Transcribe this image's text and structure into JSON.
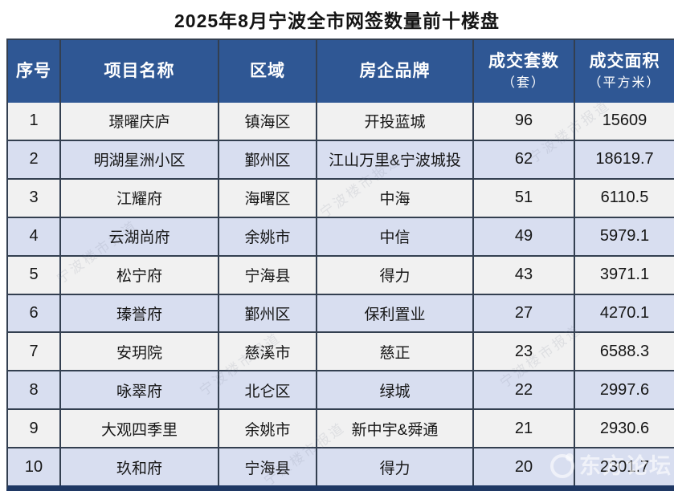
{
  "title": "2025年8月宁波全市网签数量前十楼盘",
  "colors": {
    "header_bg": "#2F5794",
    "row_odd": "#F1F1F1",
    "row_even": "#D8DEF0",
    "border": "#333F50",
    "bottom_bar": "#1F3864"
  },
  "watermark": {
    "diagonal_text": "宁波楼市报道",
    "brand_text": "东方论坛"
  },
  "chart_data": {
    "type": "table",
    "title": "2025年8月宁波全市网签数量前十楼盘",
    "columns": [
      {
        "label": "序号",
        "sub": ""
      },
      {
        "label": "项目名称",
        "sub": ""
      },
      {
        "label": "区域",
        "sub": ""
      },
      {
        "label": "房企品牌",
        "sub": ""
      },
      {
        "label": "成交套数",
        "sub": "（套）"
      },
      {
        "label": "成交面积",
        "sub": "（平方米）"
      }
    ],
    "rows": [
      [
        "1",
        "璟曜庆庐",
        "镇海区",
        "开投蓝城",
        "96",
        "15609"
      ],
      [
        "2",
        "明湖星洲小区",
        "鄞州区",
        "江山万里&宁波城投",
        "62",
        "18619.7"
      ],
      [
        "3",
        "江耀府",
        "海曙区",
        "中海",
        "51",
        "6110.5"
      ],
      [
        "4",
        "云湖尚府",
        "余姚市",
        "中信",
        "49",
        "5979.1"
      ],
      [
        "5",
        "松宁府",
        "宁海县",
        "得力",
        "43",
        "3971.1"
      ],
      [
        "6",
        "瑧誉府",
        "鄞州区",
        "保利置业",
        "27",
        "4270.1"
      ],
      [
        "7",
        "安玥院",
        "慈溪市",
        "慈正",
        "23",
        "6588.3"
      ],
      [
        "8",
        "咏翠府",
        "北仑区",
        "绿城",
        "22",
        "2997.6"
      ],
      [
        "9",
        "大观四季里",
        "余姚市",
        "新中宇&舜通",
        "21",
        "2930.6"
      ],
      [
        "10",
        "玖和府",
        "宁海县",
        "得力",
        "20",
        "2301.7"
      ]
    ]
  }
}
